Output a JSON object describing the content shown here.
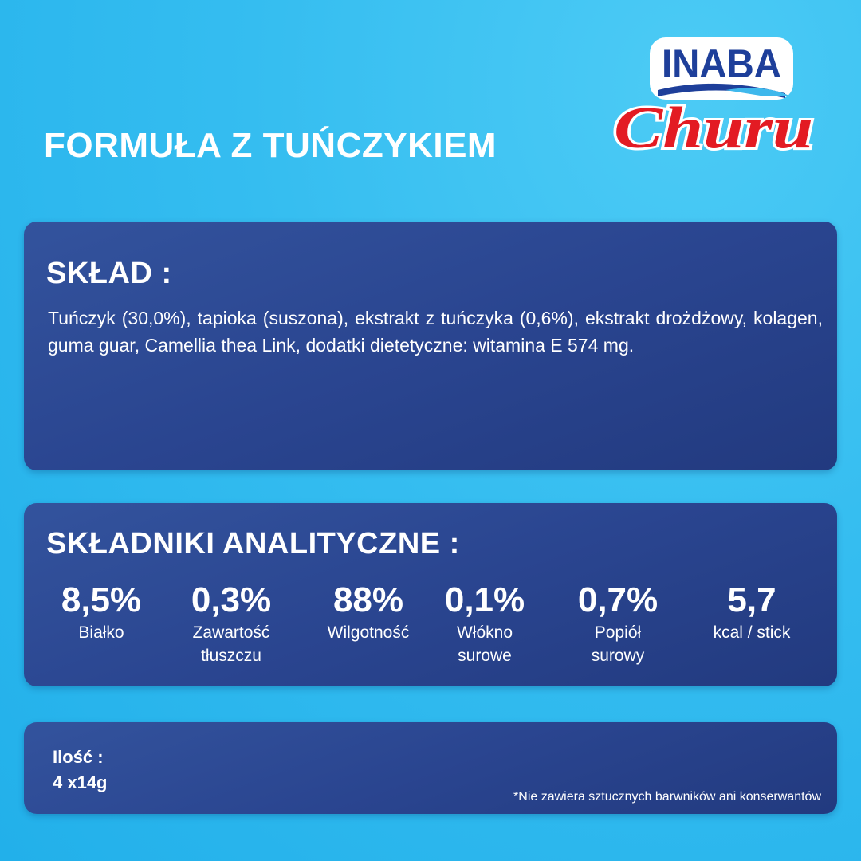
{
  "title": "FORMUŁA Z TUŃCZYKIEM",
  "logo": {
    "brand": "INABA",
    "product": "Churu",
    "colors": {
      "inaba": "#1e3f9a",
      "churu": "#e31b23"
    }
  },
  "sklad": {
    "heading": "SKŁAD :",
    "text": "Tuńczyk (30,0%), tapioka (suszona), ekstrakt z tuńczyka (0,6%), ekstrakt drożdżowy, kolagen, guma guar, Camellia thea Link, dodatki dietetyczne: witamina E 574 mg."
  },
  "analytical": {
    "heading": "SKŁADNIKI ANALITYCZNE :",
    "items": [
      {
        "value": "8,5%",
        "label": "Białko"
      },
      {
        "value": "0,3%",
        "label": "Zawartość tłuszczu"
      },
      {
        "value": "88%",
        "label": "Wilgotność"
      },
      {
        "value": "0,1%",
        "label": "Włókno surowe"
      },
      {
        "value": "0,7%",
        "label": "Popiół surowy"
      },
      {
        "value": "5,7",
        "label": "kcal / stick"
      }
    ]
  },
  "quantity": {
    "label": "Ilość :",
    "value": "4 x14g"
  },
  "note": "*Nie zawiera sztucznych barwników ani konserwantów"
}
